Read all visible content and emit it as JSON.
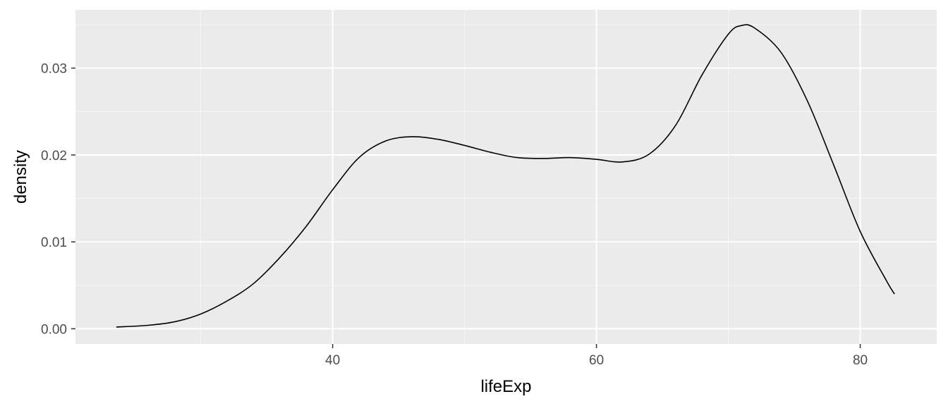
{
  "chart_data": {
    "type": "line",
    "title": "",
    "xlabel": "lifeExp",
    "ylabel": "density",
    "xlim": [
      20.5,
      85.8
    ],
    "ylim": [
      -0.00175,
      0.0367
    ],
    "x_major_ticks": [
      40,
      60,
      80
    ],
    "x_tick_labels": [
      "40",
      "60",
      "80"
    ],
    "x_minor_ticks": [
      30,
      50,
      70
    ],
    "y_major_ticks": [
      0.0,
      0.01,
      0.02,
      0.03
    ],
    "y_tick_labels": [
      "0.00",
      "0.01",
      "0.02",
      "0.03"
    ],
    "y_minor_ticks": [
      0.005,
      0.015,
      0.025,
      0.035
    ],
    "grid": true,
    "panel_background": "#ebebeb",
    "line_color": "#000000",
    "series": [
      {
        "x": [
          23.6,
          26,
          28,
          30,
          32,
          34,
          36,
          38,
          40,
          42,
          44,
          46,
          48,
          50,
          52,
          54,
          56,
          58,
          60,
          62,
          64,
          66,
          68,
          70,
          71,
          72,
          74,
          76,
          78,
          80,
          82,
          82.6
        ],
        "y": [
          0.0002,
          0.0004,
          0.0008,
          0.0017,
          0.0032,
          0.0052,
          0.0082,
          0.0118,
          0.016,
          0.0197,
          0.0216,
          0.0221,
          0.0218,
          0.0211,
          0.0203,
          0.0197,
          0.0196,
          0.0197,
          0.0195,
          0.0192,
          0.0201,
          0.0234,
          0.0292,
          0.0339,
          0.0349,
          0.0346,
          0.0318,
          0.0262,
          0.0188,
          0.0112,
          0.0055,
          0.004
        ]
      }
    ]
  }
}
